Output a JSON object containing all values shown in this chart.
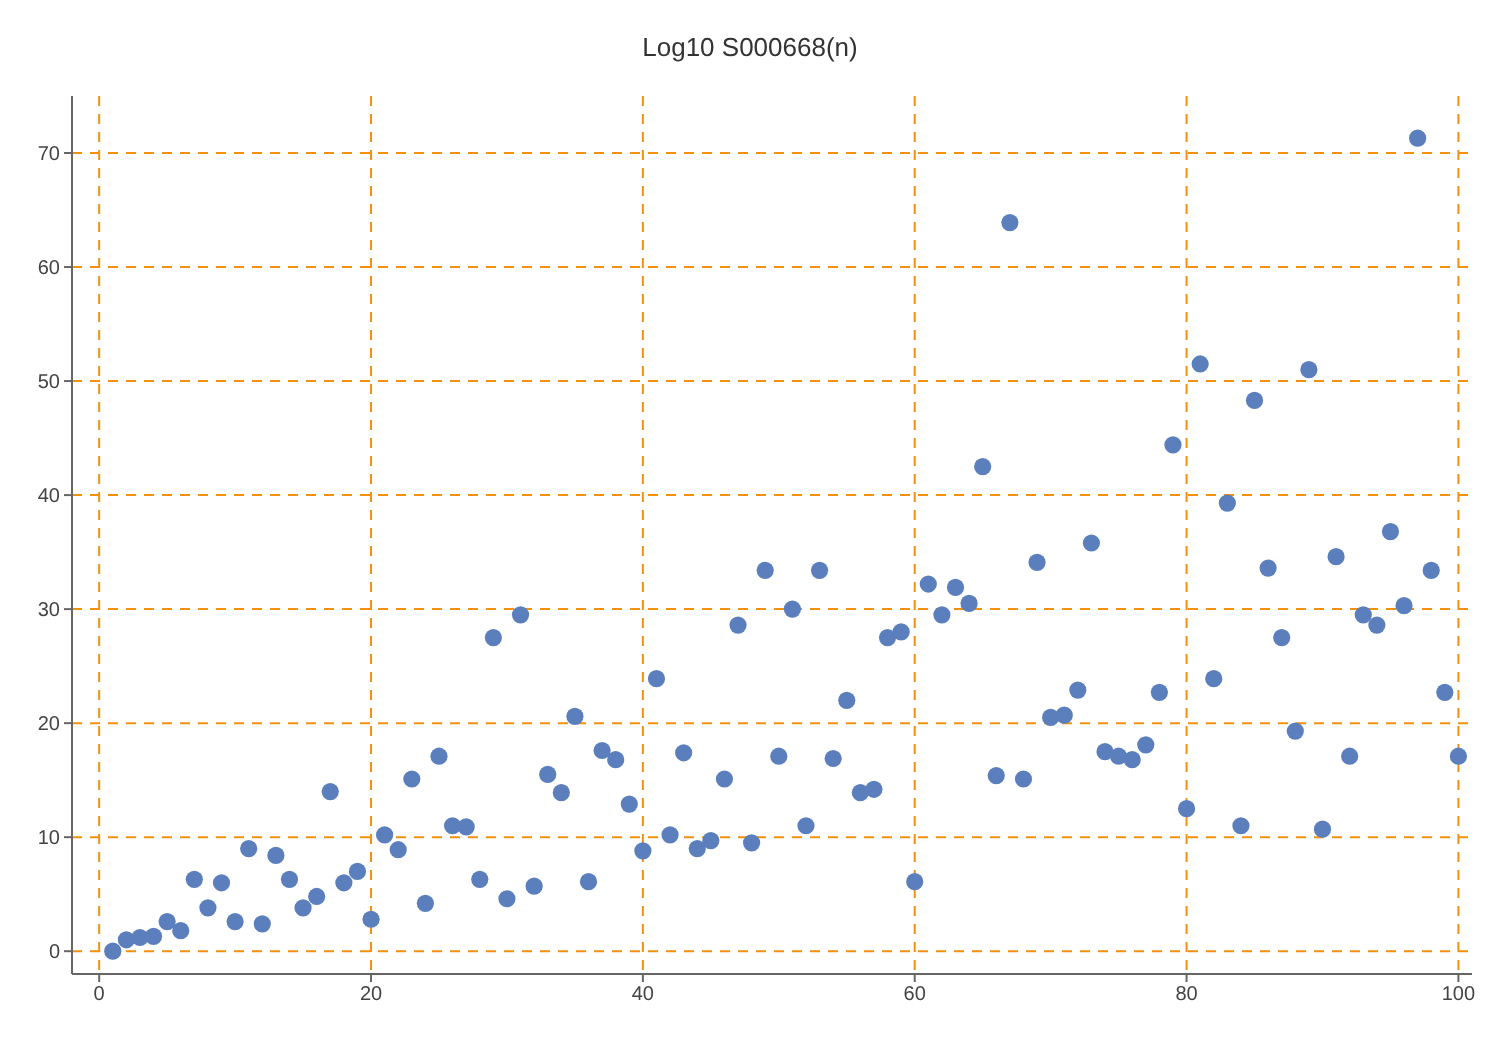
{
  "chart_data": {
    "type": "scatter",
    "title": "Log10 S000668(n)",
    "x": [
      1,
      2,
      3,
      4,
      5,
      6,
      7,
      8,
      9,
      10,
      11,
      12,
      13,
      14,
      15,
      16,
      17,
      18,
      19,
      20,
      21,
      22,
      23,
      24,
      25,
      26,
      27,
      28,
      29,
      30,
      31,
      32,
      33,
      34,
      35,
      36,
      37,
      38,
      39,
      40,
      41,
      42,
      43,
      44,
      45,
      46,
      47,
      48,
      49,
      50,
      51,
      52,
      53,
      54,
      55,
      56,
      57,
      58,
      59,
      60,
      61,
      62,
      63,
      64,
      65,
      66,
      67,
      68,
      69,
      70,
      71,
      72,
      73,
      74,
      75,
      76,
      77,
      78,
      79,
      80,
      81,
      82,
      83,
      84,
      85,
      86,
      87,
      88,
      89,
      90,
      91,
      92,
      93,
      94,
      95,
      96,
      97,
      98,
      99,
      100
    ],
    "series": [
      {
        "color": "#5b7fbd",
        "values": [
          0,
          1.0,
          1.2,
          1.3,
          2.6,
          1.8,
          6.3,
          3.8,
          6.0,
          2.6,
          9.0,
          2.4,
          8.4,
          6.3,
          3.8,
          4.8,
          14.0,
          6.0,
          7.0,
          2.8,
          10.2,
          8.9,
          15.1,
          4.2,
          17.1,
          11.0,
          10.9,
          6.3,
          27.5,
          4.6,
          29.5,
          5.7,
          15.5,
          13.9,
          20.6,
          6.1,
          17.6,
          16.8,
          12.9,
          8.8,
          23.9,
          10.2,
          17.4,
          9.0,
          9.7,
          15.1,
          28.6,
          9.5,
          33.4,
          17.1,
          30.0,
          11.0,
          33.4,
          16.9,
          22.0,
          13.9,
          14.2,
          27.5,
          28.0,
          6.1,
          32.2,
          29.5,
          31.9,
          30.5,
          42.5,
          15.4,
          63.9,
          15.1,
          34.1,
          20.5,
          20.7,
          22.9,
          35.8,
          17.5,
          17.1,
          16.8,
          18.1,
          22.7,
          44.4,
          12.5,
          51.5,
          23.9,
          39.3,
          11.0,
          48.3,
          33.6,
          27.5,
          19.3,
          51.0,
          10.7,
          34.6,
          17.1,
          29.5,
          28.6,
          36.8,
          30.3,
          71.3,
          33.4,
          22.7,
          17.1
        ]
      }
    ],
    "xlim": [
      -2,
      101
    ],
    "xticks": [
      0,
      20,
      40,
      60,
      80,
      100
    ],
    "ylim": [
      -2,
      75
    ],
    "yticks": [
      0,
      10,
      20,
      30,
      40,
      50,
      60,
      70
    ],
    "grid": true,
    "marker": "circle"
  }
}
